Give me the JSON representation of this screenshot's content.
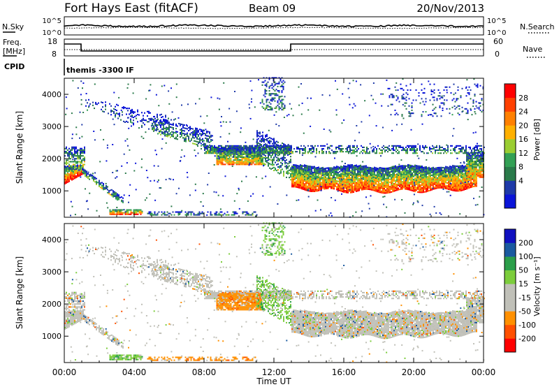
{
  "header": {
    "title": "Fort Hays East (fitACF)",
    "beam": "Beam 09",
    "date": "20/Nov/2013"
  },
  "noise_panel": {
    "left_label": "N.Sky",
    "right_label": "N.Search",
    "ticks": [
      "10^5",
      "10^0"
    ]
  },
  "freq_panel": {
    "left_label_line1": "Freq.",
    "left_label_line2": "[MHz]",
    "right_label": "Nave",
    "left_ticks": [
      "18",
      "8"
    ],
    "right_ticks": [
      "60",
      "0"
    ]
  },
  "cpid": {
    "label": "CPID",
    "text": "themis -3300 IF"
  },
  "colors": {
    "power": [
      "#0a14d8",
      "#1e3aa8",
      "#2a7a4a",
      "#33a055",
      "#9acd32",
      "#ffb000",
      "#ff8000",
      "#ff4000",
      "#ff0000"
    ],
    "velocity": [
      "#ff0000",
      "#ff5000",
      "#ff9000",
      "#c0c0b8",
      "#c0c0b8",
      "#7ccd3c",
      "#2b9e4a",
      "#1a5aa0",
      "#1010c0"
    ],
    "gray": "#c0c0b8"
  },
  "chart_data": [
    {
      "type": "heatmap",
      "name": "power-panel",
      "ylabel": "Slant Range [km]",
      "yticks": [
        "1000",
        "2000",
        "3000",
        "4000"
      ],
      "yticks_values": [
        1000,
        2000,
        3000,
        4000
      ],
      "ylim": [
        180,
        4500
      ],
      "colorbar_label": "Power [dB]",
      "colorbar_ticks": [
        "28",
        "24",
        "20",
        "16",
        "12",
        "8",
        "4"
      ],
      "clim": [
        0,
        32
      ]
    },
    {
      "type": "heatmap",
      "name": "velocity-panel",
      "ylabel": "Slant Range [km]",
      "yticks": [
        "1000",
        "2000",
        "3000",
        "4000"
      ],
      "yticks_values": [
        1000,
        2000,
        3000,
        4000
      ],
      "ylim": [
        180,
        4500
      ],
      "colorbar_label": "Velocity [m s⁻¹]",
      "colorbar_ticks": [
        "200",
        "100",
        "50",
        "15",
        "-15",
        "-50",
        "-100",
        "-200"
      ]
    }
  ],
  "x_axis": {
    "ticks": [
      "00:00",
      "04:00",
      "08:00",
      "12:00",
      "16:00",
      "20:00",
      "00:00"
    ],
    "tick_hours": [
      0,
      4,
      8,
      12,
      16,
      20,
      24
    ],
    "xlabel": "Time UT"
  }
}
